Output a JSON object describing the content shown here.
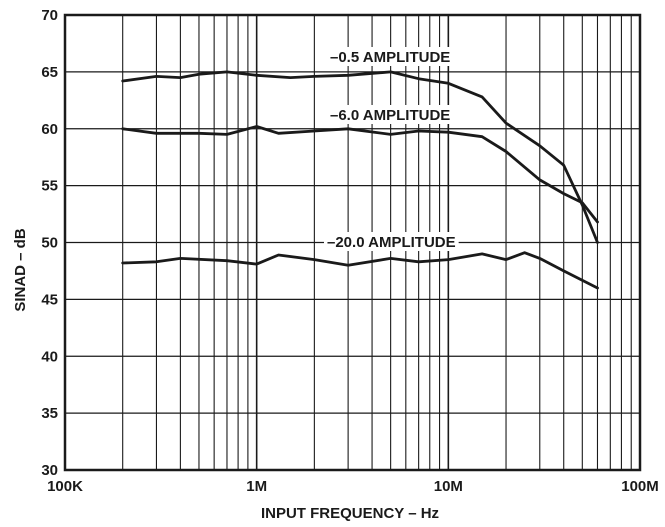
{
  "chart_data": {
    "type": "line",
    "title": "",
    "xlabel": "INPUT FREQUENCY – Hz",
    "ylabel": "SINAD – dB",
    "x_scale": "log",
    "xlim": [
      100000,
      100000000
    ],
    "ylim": [
      30,
      70
    ],
    "grid": true,
    "x_ticks": [
      {
        "value": 100000,
        "label": "100K"
      },
      {
        "value": 1000000,
        "label": "1M"
      },
      {
        "value": 10000000,
        "label": "10M"
      },
      {
        "value": 100000000,
        "label": "100M"
      }
    ],
    "y_ticks": [
      {
        "value": 30,
        "label": "30"
      },
      {
        "value": 35,
        "label": "35"
      },
      {
        "value": 40,
        "label": "40"
      },
      {
        "value": 45,
        "label": "45"
      },
      {
        "value": 50,
        "label": "50"
      },
      {
        "value": 55,
        "label": "55"
      },
      {
        "value": 60,
        "label": "60"
      },
      {
        "value": 65,
        "label": "65"
      },
      {
        "value": 70,
        "label": "70"
      }
    ],
    "series": [
      {
        "name": "–0.5 AMPLITUDE",
        "color": "#1a1a1a",
        "points": [
          [
            200000,
            64.2
          ],
          [
            300000,
            64.6
          ],
          [
            400000,
            64.5
          ],
          [
            500000,
            64.8
          ],
          [
            700000,
            65.0
          ],
          [
            1000000,
            64.7
          ],
          [
            1500000,
            64.5
          ],
          [
            2000000,
            64.6
          ],
          [
            3000000,
            64.7
          ],
          [
            5000000,
            65.0
          ],
          [
            7000000,
            64.4
          ],
          [
            10000000,
            64.0
          ],
          [
            15000000,
            62.8
          ],
          [
            20000000,
            60.5
          ],
          [
            30000000,
            58.5
          ],
          [
            40000000,
            56.8
          ],
          [
            50000000,
            53.3
          ],
          [
            60000000,
            50.0
          ]
        ]
      },
      {
        "name": "–6.0 AMPLITUDE",
        "color": "#1a1a1a",
        "points": [
          [
            200000,
            60.0
          ],
          [
            300000,
            59.6
          ],
          [
            400000,
            59.6
          ],
          [
            500000,
            59.6
          ],
          [
            700000,
            59.5
          ],
          [
            1000000,
            60.2
          ],
          [
            1300000,
            59.6
          ],
          [
            2000000,
            59.8
          ],
          [
            3000000,
            60.0
          ],
          [
            5000000,
            59.5
          ],
          [
            7000000,
            59.8
          ],
          [
            10000000,
            59.7
          ],
          [
            15000000,
            59.3
          ],
          [
            20000000,
            58.0
          ],
          [
            30000000,
            55.5
          ],
          [
            40000000,
            54.3
          ],
          [
            50000000,
            53.5
          ],
          [
            60000000,
            51.8
          ]
        ]
      },
      {
        "name": "–20.0 AMPLITUDE",
        "color": "#1a1a1a",
        "points": [
          [
            200000,
            48.2
          ],
          [
            300000,
            48.3
          ],
          [
            400000,
            48.6
          ],
          [
            700000,
            48.4
          ],
          [
            1000000,
            48.1
          ],
          [
            1300000,
            48.9
          ],
          [
            2000000,
            48.5
          ],
          [
            3000000,
            48.0
          ],
          [
            5000000,
            48.6
          ],
          [
            7000000,
            48.3
          ],
          [
            10000000,
            48.5
          ],
          [
            15000000,
            49.0
          ],
          [
            20000000,
            48.5
          ],
          [
            25000000,
            49.1
          ],
          [
            30000000,
            48.6
          ],
          [
            40000000,
            47.5
          ],
          [
            60000000,
            46.0
          ]
        ]
      }
    ],
    "annotations": [
      {
        "series": 0,
        "text": "–0.5 AMPLITUDE"
      },
      {
        "series": 1,
        "text": "–6.0 AMPLITUDE"
      },
      {
        "series": 2,
        "text": "–20.0 AMPLITUDE"
      }
    ]
  }
}
